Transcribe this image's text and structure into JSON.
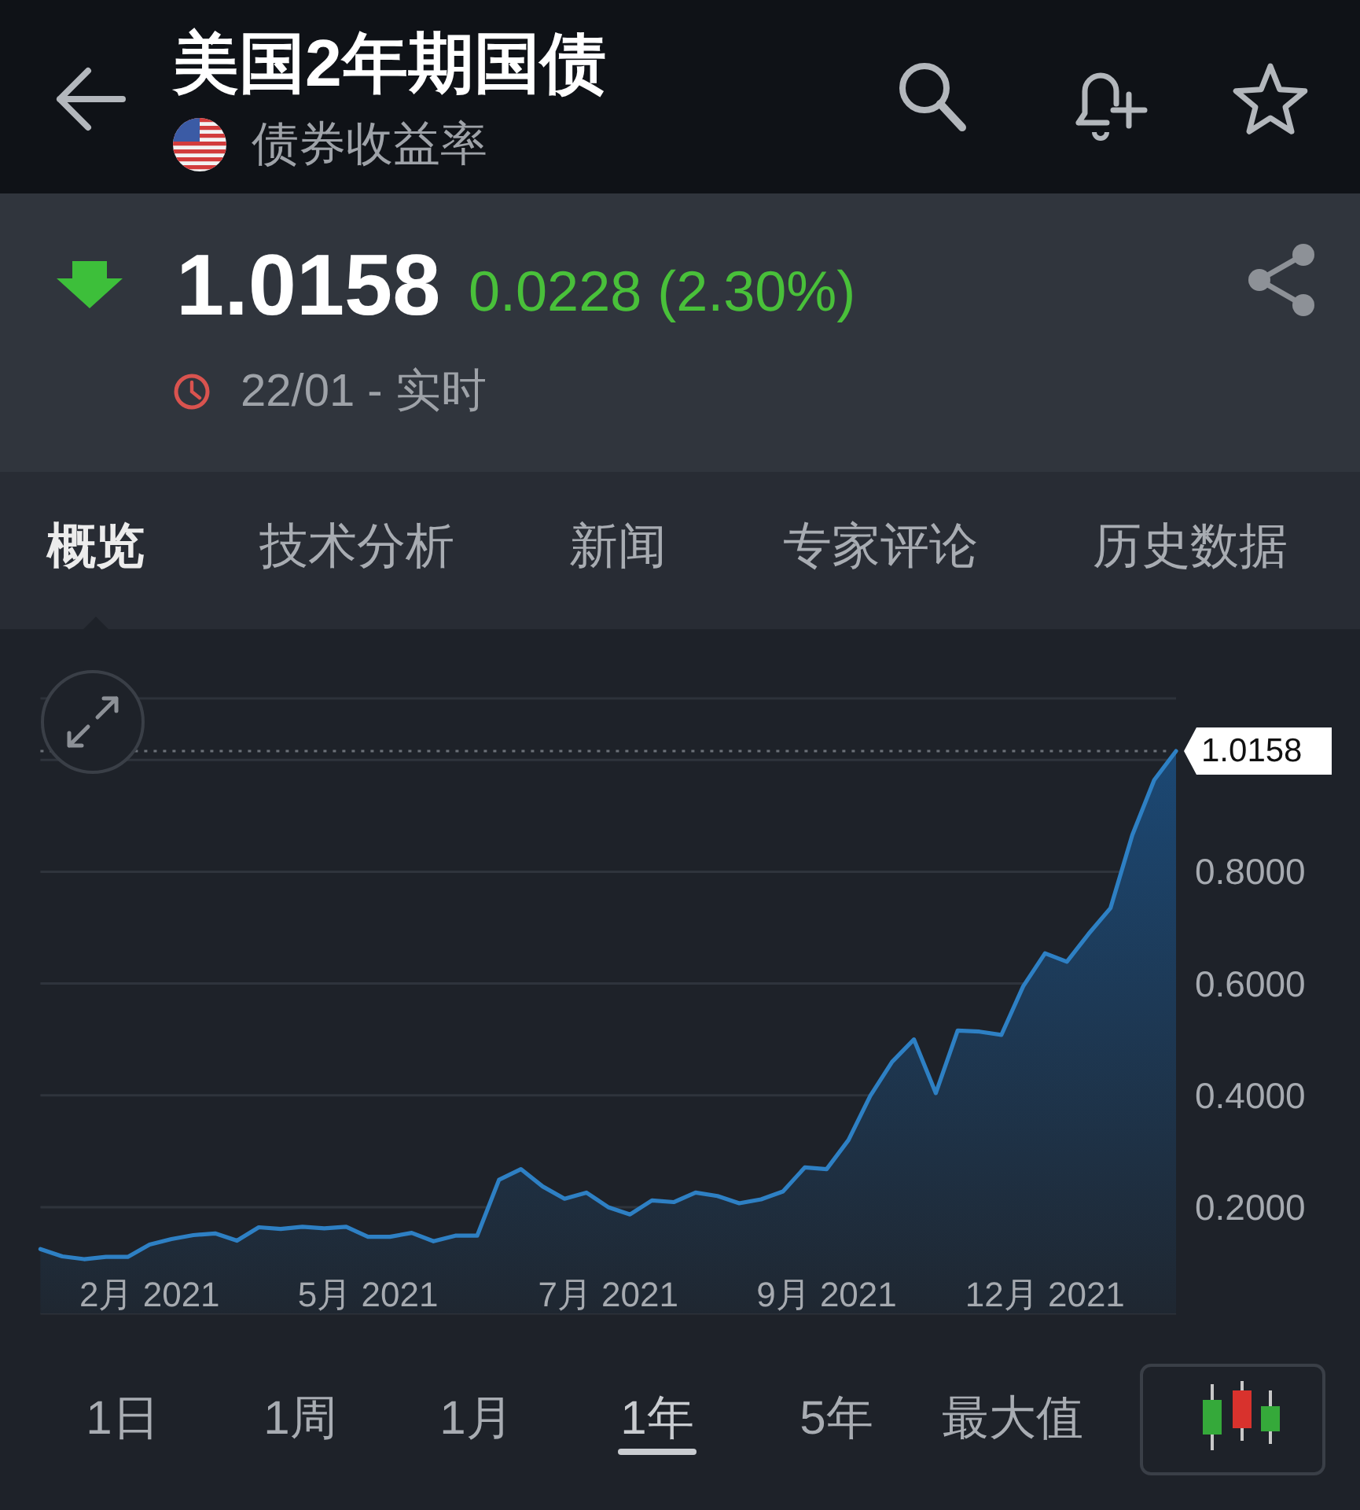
{
  "chart_data": {
    "type": "area",
    "title": "美国2年期国债",
    "subtitle": "债券收益率",
    "categories": [
      null,
      null,
      null,
      null,
      null,
      "2月 2021",
      null,
      null,
      null,
      null,
      null,
      null,
      null,
      null,
      null,
      "5月 2021",
      null,
      null,
      null,
      null,
      null,
      null,
      null,
      null,
      null,
      null,
      "7月 2021",
      null,
      null,
      null,
      null,
      null,
      null,
      null,
      null,
      null,
      "9月 2021",
      null,
      null,
      null,
      null,
      null,
      null,
      null,
      null,
      null,
      "12月 2021",
      null,
      null,
      null,
      null,
      null,
      null
    ],
    "values": [
      0.125,
      0.112,
      0.107,
      0.111,
      0.111,
      0.133,
      0.143,
      0.15,
      0.153,
      0.14,
      0.164,
      0.161,
      0.165,
      0.162,
      0.165,
      0.147,
      0.147,
      0.154,
      0.139,
      0.149,
      0.149,
      0.249,
      0.268,
      0.237,
      0.215,
      0.226,
      0.2,
      0.187,
      0.212,
      0.209,
      0.226,
      0.22,
      0.207,
      0.214,
      0.228,
      0.271,
      0.268,
      0.32,
      0.399,
      0.46,
      0.5,
      0.404,
      0.516,
      0.514,
      0.508,
      0.595,
      0.654,
      0.639,
      0.689,
      0.735,
      0.866,
      0.964,
      1.0158
    ],
    "color": "#2e80c4",
    "ylim": [
      0.01,
      1.11
    ],
    "yticks": [
      {
        "value": 0.2,
        "label": "0.2000"
      },
      {
        "value": 0.4,
        "label": "0.4000"
      },
      {
        "value": 0.6,
        "label": "0.6000"
      },
      {
        "value": 0.8,
        "label": "0.8000"
      },
      {
        "value": 1.0,
        "label": null
      }
    ],
    "grid": "y",
    "ref_lines": [
      {
        "axis": "y",
        "value": 1.0158,
        "label": "1.0158",
        "line_style": "dotted"
      }
    ],
    "annotations": [
      "1.0158",
      "0.0228 (2.30%)",
      "22/01 - 实时",
      "概览",
      "技术分析",
      "新闻",
      "专家评论",
      "历史数据",
      "1日",
      "1周",
      "1月",
      "1年",
      "5年",
      "最大值"
    ]
  }
}
